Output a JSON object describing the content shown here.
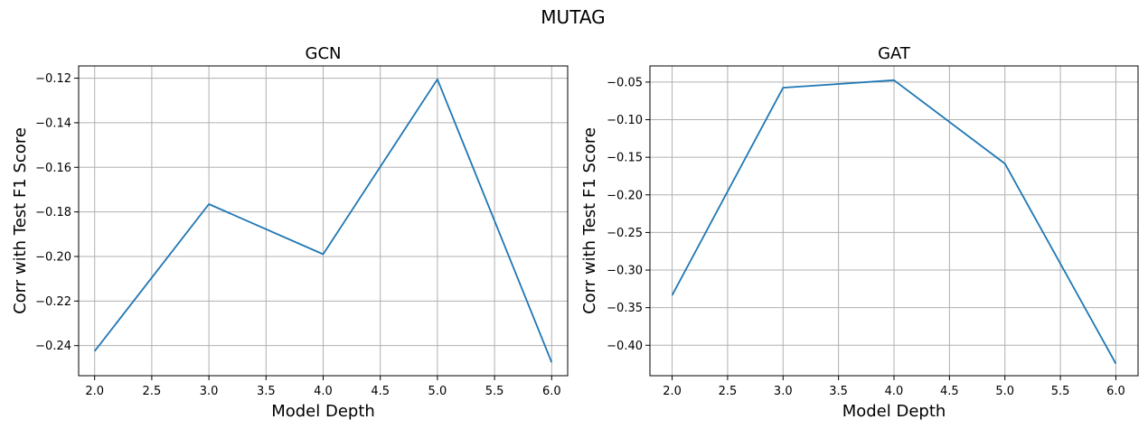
{
  "figure": {
    "title": "MUTAG"
  },
  "chart_data": [
    {
      "type": "line",
      "title": "GCN",
      "xlabel": "Model Depth",
      "ylabel": "Corr with Test F1 Score",
      "x": [
        2.0,
        3.0,
        4.0,
        5.0,
        6.0
      ],
      "series": [
        {
          "values": [
            -0.2425,
            -0.1765,
            -0.199,
            -0.1205,
            -0.2475
          ],
          "color": "#1f77b4"
        }
      ],
      "xlim": [
        1.86,
        6.14
      ],
      "ylim": [
        -0.2535,
        -0.1145
      ],
      "xticks": [
        2.0,
        2.5,
        3.0,
        3.5,
        4.0,
        4.5,
        5.0,
        5.5,
        6.0
      ],
      "xtick_labels": [
        "2.0",
        "2.5",
        "3.0",
        "3.5",
        "4.0",
        "4.5",
        "5.0",
        "5.5",
        "6.0"
      ],
      "yticks": [
        -0.24,
        -0.22,
        -0.2,
        -0.18,
        -0.16,
        -0.14,
        -0.12
      ],
      "ytick_labels": [
        "−0.24",
        "−0.22",
        "−0.20",
        "−0.18",
        "−0.16",
        "−0.14",
        "−0.12"
      ],
      "grid": true
    },
    {
      "type": "line",
      "title": "GAT",
      "xlabel": "Model Depth",
      "ylabel": "Corr with Test F1 Score",
      "x": [
        2.0,
        3.0,
        4.0,
        5.0,
        6.0
      ],
      "series": [
        {
          "values": [
            -0.3335,
            -0.0575,
            -0.0475,
            -0.1585,
            -0.4245
          ],
          "color": "#1f77b4"
        }
      ],
      "xlim": [
        1.8,
        6.2
      ],
      "ylim": [
        -0.4405,
        -0.0285
      ],
      "xticks": [
        2.0,
        2.5,
        3.0,
        3.5,
        4.0,
        4.5,
        5.0,
        5.5,
        6.0
      ],
      "xtick_labels": [
        "2.0",
        "2.5",
        "3.0",
        "3.5",
        "4.0",
        "4.5",
        "5.0",
        "5.5",
        "6.0"
      ],
      "yticks": [
        -0.4,
        -0.35,
        -0.3,
        -0.25,
        -0.2,
        -0.15,
        -0.1,
        -0.05
      ],
      "ytick_labels": [
        "−0.40",
        "−0.35",
        "−0.30",
        "−0.25",
        "−0.20",
        "−0.15",
        "−0.10",
        "−0.05"
      ],
      "grid": true
    }
  ]
}
